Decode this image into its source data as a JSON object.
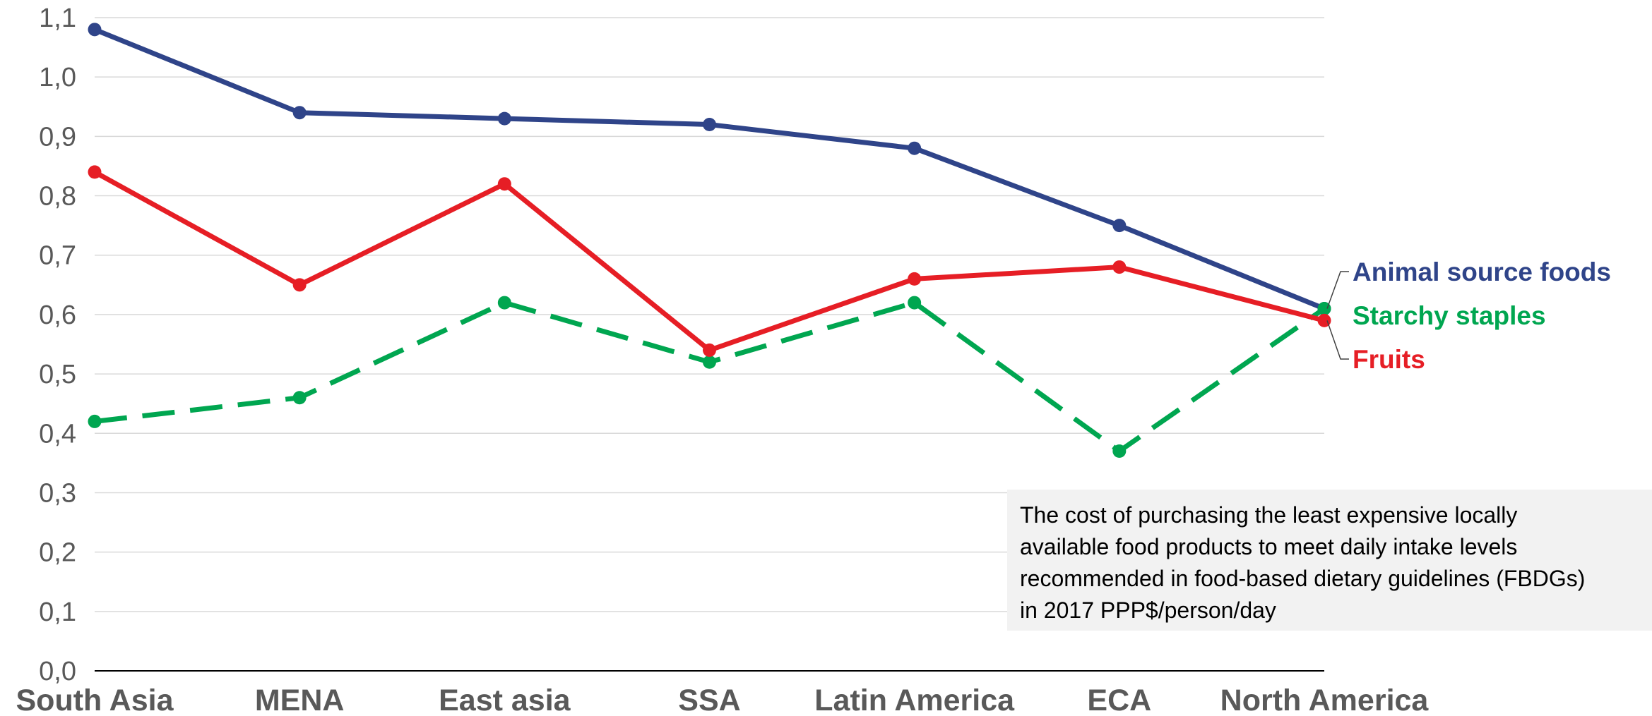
{
  "chart_data": {
    "type": "line",
    "categories": [
      "South Asia",
      "MENA",
      "East asia",
      "SSA",
      "Latin America",
      "ECA",
      "North America"
    ],
    "ylim": [
      0,
      1.1
    ],
    "yticks": [
      "0,0",
      "0,1",
      "0,2",
      "0,3",
      "0,4",
      "0,5",
      "0,6",
      "0,7",
      "0,8",
      "0,9",
      "1,0",
      "1,1"
    ],
    "grid": true,
    "series": [
      {
        "name": "Animal source foods",
        "color": "#2f4489",
        "dash": "solid",
        "values": [
          1.08,
          0.94,
          0.93,
          0.92,
          0.88,
          0.75,
          0.61
        ]
      },
      {
        "name": "Starchy staples",
        "color": "#00a650",
        "dash": "dashed",
        "values": [
          0.42,
          0.46,
          0.62,
          0.52,
          0.62,
          0.37,
          0.61
        ]
      },
      {
        "name": "Fruits",
        "color": "#e61e25",
        "dash": "solid",
        "values": [
          0.84,
          0.65,
          0.82,
          0.54,
          0.66,
          0.68,
          0.59
        ]
      }
    ],
    "annotation": "The cost of purchasing the least expensive locally\navailable food products to meet daily intake levels\nrecommended in food-based dietary guidelines (FBDGs)\nin 2017 PPP$/person/day"
  }
}
